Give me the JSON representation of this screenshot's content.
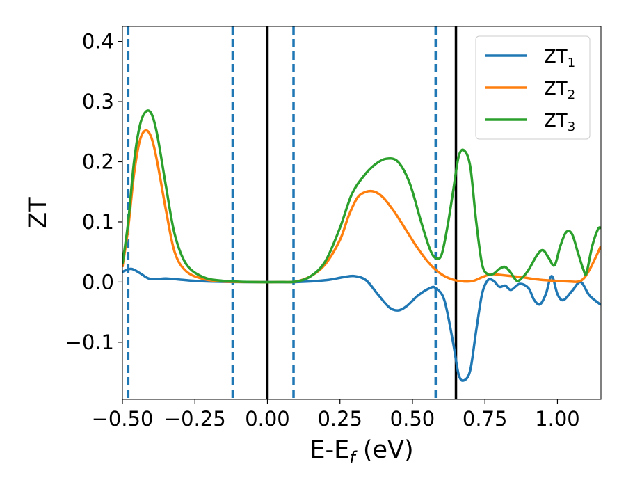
{
  "chart_data": {
    "type": "line",
    "title": "",
    "xlabel": "E-E",
    "xlabel_sub": "f",
    "xlabel_unit": " (eV)",
    "ylabel": "ZT",
    "xlim": [
      -0.5,
      1.15
    ],
    "ylim": [
      -0.195,
      0.425
    ],
    "xticks": [
      {
        "v": -0.5,
        "label": "−0.50"
      },
      {
        "v": -0.25,
        "label": "−0.25"
      },
      {
        "v": 0.0,
        "label": "0.00"
      },
      {
        "v": 0.25,
        "label": "0.25"
      },
      {
        "v": 0.5,
        "label": "0.50"
      },
      {
        "v": 0.75,
        "label": "0.75"
      },
      {
        "v": 1.0,
        "label": "1.00"
      }
    ],
    "yticks": [
      {
        "v": -0.1,
        "label": "−0.1"
      },
      {
        "v": 0.0,
        "label": "0.0"
      },
      {
        "v": 0.1,
        "label": "0.1"
      },
      {
        "v": 0.2,
        "label": "0.2"
      },
      {
        "v": 0.3,
        "label": "0.3"
      },
      {
        "v": 0.4,
        "label": "0.4"
      }
    ],
    "grid": false,
    "legend_position": "top-right",
    "vlines_dashed": [
      -0.48,
      -0.12,
      0.09,
      0.58
    ],
    "vlines_solid": [
      0.0,
      0.65
    ],
    "colors": {
      "dashed": "#1f77b4",
      "solid": "#000000"
    },
    "series": [
      {
        "name": "ZT",
        "name_sub": "1",
        "color": "#1f77b4",
        "points": [
          [
            -0.5,
            0.017
          ],
          [
            -0.47,
            0.022
          ],
          [
            -0.44,
            0.015
          ],
          [
            -0.41,
            0.006
          ],
          [
            -0.38,
            0.005
          ],
          [
            -0.35,
            0.006
          ],
          [
            -0.3,
            0.004
          ],
          [
            -0.25,
            0.002
          ],
          [
            -0.2,
            0.001
          ],
          [
            -0.1,
            0.0
          ],
          [
            0.0,
            0.0
          ],
          [
            0.1,
            0.0
          ],
          [
            0.2,
            0.003
          ],
          [
            0.26,
            0.008
          ],
          [
            0.3,
            0.01
          ],
          [
            0.34,
            0.003
          ],
          [
            0.38,
            -0.02
          ],
          [
            0.42,
            -0.042
          ],
          [
            0.45,
            -0.047
          ],
          [
            0.48,
            -0.04
          ],
          [
            0.52,
            -0.022
          ],
          [
            0.56,
            -0.01
          ],
          [
            0.58,
            -0.01
          ],
          [
            0.61,
            -0.03
          ],
          [
            0.64,
            -0.1
          ],
          [
            0.66,
            -0.155
          ],
          [
            0.68,
            -0.163
          ],
          [
            0.7,
            -0.145
          ],
          [
            0.72,
            -0.08
          ],
          [
            0.74,
            -0.02
          ],
          [
            0.76,
            0.003
          ],
          [
            0.78,
            0.002
          ],
          [
            0.8,
            -0.008
          ],
          [
            0.82,
            -0.006
          ],
          [
            0.84,
            -0.013
          ],
          [
            0.87,
            -0.003
          ],
          [
            0.9,
            -0.01
          ],
          [
            0.92,
            -0.03
          ],
          [
            0.94,
            -0.037
          ],
          [
            0.96,
            -0.02
          ],
          [
            0.98,
            0.01
          ],
          [
            1.0,
            -0.02
          ],
          [
            1.02,
            -0.03
          ],
          [
            1.05,
            -0.015
          ],
          [
            1.08,
            0.0
          ],
          [
            1.11,
            -0.022
          ],
          [
            1.15,
            -0.038
          ]
        ]
      },
      {
        "name": "ZT",
        "name_sub": "2",
        "color": "#ff7f0e",
        "points": [
          [
            -0.5,
            0.025
          ],
          [
            -0.48,
            0.09
          ],
          [
            -0.46,
            0.18
          ],
          [
            -0.44,
            0.235
          ],
          [
            -0.42,
            0.252
          ],
          [
            -0.4,
            0.24
          ],
          [
            -0.38,
            0.2
          ],
          [
            -0.35,
            0.12
          ],
          [
            -0.32,
            0.05
          ],
          [
            -0.28,
            0.018
          ],
          [
            -0.22,
            0.005
          ],
          [
            -0.15,
            0.001
          ],
          [
            -0.05,
            0.0
          ],
          [
            0.05,
            0.0
          ],
          [
            0.1,
            0.001
          ],
          [
            0.15,
            0.01
          ],
          [
            0.2,
            0.03
          ],
          [
            0.25,
            0.07
          ],
          [
            0.28,
            0.11
          ],
          [
            0.31,
            0.14
          ],
          [
            0.34,
            0.15
          ],
          [
            0.37,
            0.15
          ],
          [
            0.4,
            0.14
          ],
          [
            0.44,
            0.115
          ],
          [
            0.48,
            0.085
          ],
          [
            0.52,
            0.055
          ],
          [
            0.56,
            0.03
          ],
          [
            0.6,
            0.013
          ],
          [
            0.64,
            0.004
          ],
          [
            0.68,
            0.001
          ],
          [
            0.71,
            0.002
          ],
          [
            0.74,
            0.008
          ],
          [
            0.77,
            0.013
          ],
          [
            0.8,
            0.012
          ],
          [
            0.84,
            0.01
          ],
          [
            0.88,
            0.008
          ],
          [
            0.92,
            0.005
          ],
          [
            0.96,
            0.003
          ],
          [
            1.0,
            0.002
          ],
          [
            1.04,
            0.001
          ],
          [
            1.08,
            0.002
          ],
          [
            1.11,
            0.02
          ],
          [
            1.15,
            0.06
          ]
        ]
      },
      {
        "name": "ZT",
        "name_sub": "3",
        "color": "#2ca02c",
        "points": [
          [
            -0.5,
            0.03
          ],
          [
            -0.48,
            0.1
          ],
          [
            -0.46,
            0.2
          ],
          [
            -0.44,
            0.26
          ],
          [
            -0.42,
            0.283
          ],
          [
            -0.4,
            0.28
          ],
          [
            -0.38,
            0.245
          ],
          [
            -0.35,
            0.16
          ],
          [
            -0.32,
            0.08
          ],
          [
            -0.28,
            0.03
          ],
          [
            -0.22,
            0.008
          ],
          [
            -0.15,
            0.002
          ],
          [
            -0.05,
            0.0
          ],
          [
            0.05,
            0.0
          ],
          [
            0.1,
            0.001
          ],
          [
            0.15,
            0.01
          ],
          [
            0.2,
            0.035
          ],
          [
            0.25,
            0.09
          ],
          [
            0.29,
            0.145
          ],
          [
            0.33,
            0.175
          ],
          [
            0.37,
            0.195
          ],
          [
            0.41,
            0.205
          ],
          [
            0.45,
            0.2
          ],
          [
            0.49,
            0.165
          ],
          [
            0.53,
            0.1
          ],
          [
            0.56,
            0.055
          ],
          [
            0.58,
            0.04
          ],
          [
            0.6,
            0.045
          ],
          [
            0.62,
            0.09
          ],
          [
            0.64,
            0.15
          ],
          [
            0.66,
            0.21
          ],
          [
            0.68,
            0.218
          ],
          [
            0.7,
            0.19
          ],
          [
            0.72,
            0.1
          ],
          [
            0.74,
            0.03
          ],
          [
            0.76,
            0.013
          ],
          [
            0.78,
            0.014
          ],
          [
            0.8,
            0.022
          ],
          [
            0.82,
            0.025
          ],
          [
            0.84,
            0.015
          ],
          [
            0.86,
            0.002
          ],
          [
            0.88,
            0.008
          ],
          [
            0.9,
            0.02
          ],
          [
            0.93,
            0.045
          ],
          [
            0.95,
            0.053
          ],
          [
            0.97,
            0.04
          ],
          [
            0.99,
            0.028
          ],
          [
            1.01,
            0.06
          ],
          [
            1.03,
            0.083
          ],
          [
            1.05,
            0.08
          ],
          [
            1.07,
            0.05
          ],
          [
            1.09,
            0.02
          ],
          [
            1.1,
            0.015
          ],
          [
            1.12,
            0.06
          ],
          [
            1.14,
            0.088
          ],
          [
            1.15,
            0.09
          ]
        ]
      }
    ]
  }
}
